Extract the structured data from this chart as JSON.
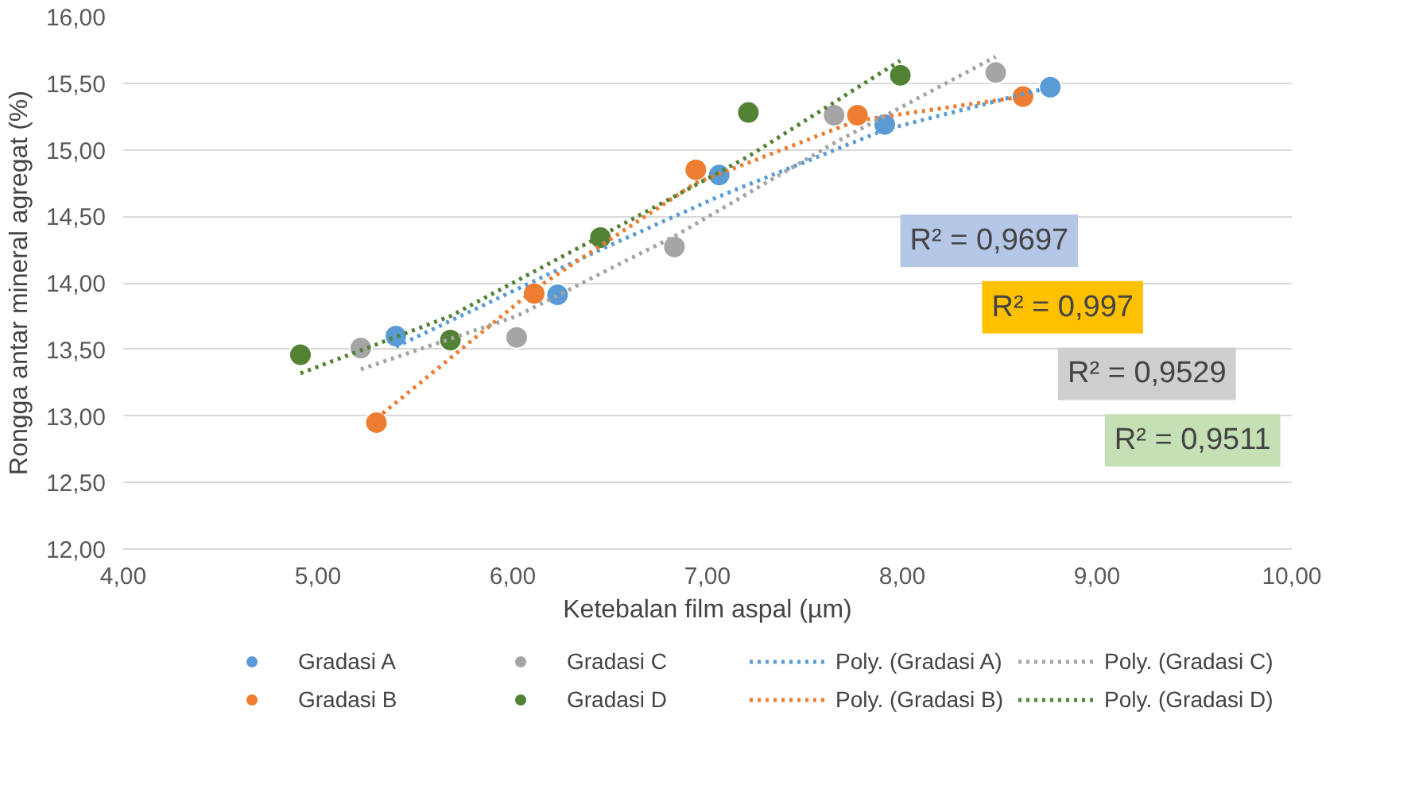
{
  "chart_data": {
    "type": "scatter",
    "xlabel": "Ketebalan film aspal (µm)",
    "ylabel": "Rongga antar mineral agregat (%)",
    "xlim": [
      4,
      10
    ],
    "xticks": [
      {
        "value": 4,
        "label": "4,00"
      },
      {
        "value": 5,
        "label": "5,00"
      },
      {
        "value": 6,
        "label": "6,00"
      },
      {
        "value": 7,
        "label": "7,00"
      },
      {
        "value": 8,
        "label": "8,00"
      },
      {
        "value": 9,
        "label": "9,00"
      },
      {
        "value": 10,
        "label": "10,00"
      }
    ],
    "ylim": [
      12,
      16
    ],
    "yticks": [
      {
        "value": 12,
        "label": "12,00"
      },
      {
        "value": 12.5,
        "label": "12,50"
      },
      {
        "value": 13,
        "label": "13,00"
      },
      {
        "value": 13.5,
        "label": "13,50"
      },
      {
        "value": 14,
        "label": "14,00"
      },
      {
        "value": 14.5,
        "label": "14,50"
      },
      {
        "value": 15,
        "label": "15,00"
      },
      {
        "value": 15.5,
        "label": "15,50"
      },
      {
        "value": 16,
        "label": "16,00"
      }
    ],
    "grid": "y",
    "legend": "bottom",
    "marker": "circle",
    "series": [
      {
        "name": "Gradasi A",
        "color": "#5b9bd5",
        "x": [
          5.4,
          6.23,
          7.06,
          7.91,
          8.76
        ],
        "values": [
          13.6,
          13.91,
          14.81,
          15.19,
          15.47
        ]
      },
      {
        "name": "Gradasi B",
        "color": "#ed7d31",
        "x": [
          5.3,
          6.11,
          6.94,
          7.77,
          8.62
        ],
        "values": [
          12.95,
          13.92,
          14.85,
          15.26,
          15.4
        ]
      },
      {
        "name": "Gradasi C",
        "color": "#a5a5a5",
        "x": [
          5.22,
          6.02,
          6.83,
          7.65,
          8.48
        ],
        "values": [
          13.51,
          13.59,
          14.27,
          15.26,
          15.58
        ]
      },
      {
        "name": "Gradasi D",
        "color": "#548235",
        "x": [
          4.91,
          5.68,
          6.45,
          7.21,
          7.99
        ],
        "values": [
          13.46,
          13.57,
          14.34,
          15.28,
          15.56
        ]
      },
      {
        "name": "Poly. (Gradasi A)",
        "type": "line",
        "line_style": "dotted",
        "marker": "none",
        "color": "#5b9bd5",
        "x": [
          5.4,
          6.45,
          7.06,
          7.91,
          8.76
        ],
        "values": [
          13.52,
          14.25,
          14.65,
          15.15,
          15.47
        ]
      },
      {
        "name": "Poly. (Gradasi B)",
        "type": "line",
        "line_style": "dotted",
        "marker": "none",
        "color": "#ed7d31",
        "x": [
          5.3,
          6.11,
          6.94,
          7.77,
          8.62
        ],
        "values": [
          12.98,
          13.95,
          14.75,
          15.22,
          15.4
        ]
      },
      {
        "name": "Poly. (Gradasi C)",
        "type": "line",
        "line_style": "dotted",
        "marker": "none",
        "color": "#a5a5a5",
        "x": [
          5.22,
          6.02,
          6.83,
          7.65,
          8.48
        ],
        "values": [
          13.35,
          13.75,
          14.35,
          15.05,
          15.7
        ]
      },
      {
        "name": "Poly. (Gradasi D)",
        "type": "line",
        "line_style": "dotted",
        "marker": "none",
        "color": "#548235",
        "x": [
          4.91,
          5.68,
          6.45,
          7.21,
          7.99
        ],
        "values": [
          13.32,
          13.75,
          14.35,
          14.95,
          15.67
        ]
      }
    ],
    "annotations": [
      "R² = 0,9697",
      "R² = 0,997",
      "R² = 0,9529",
      "R² = 0,9511"
    ]
  }
}
